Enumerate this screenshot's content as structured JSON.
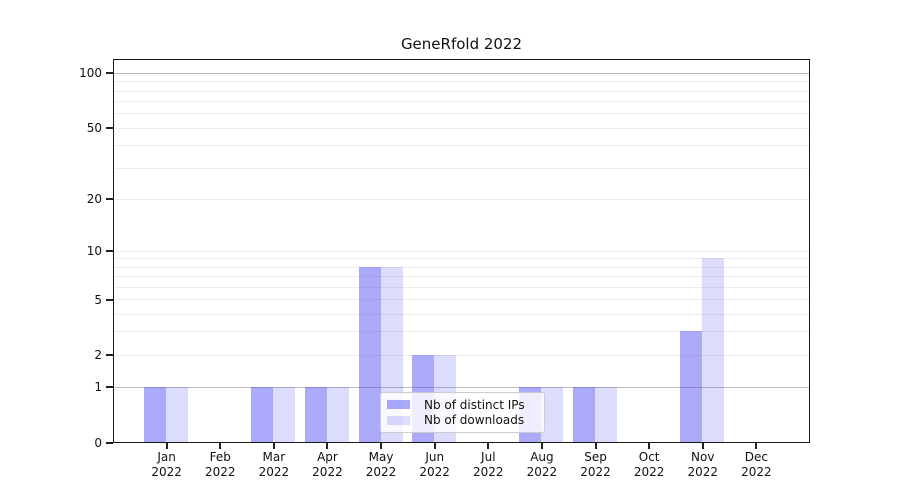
{
  "chart_data": {
    "type": "bar",
    "title": "GeneRfold 2022",
    "categories": [
      "Jan 2022",
      "Feb 2022",
      "Mar 2022",
      "Apr 2022",
      "May 2022",
      "Jun 2022",
      "Jul 2022",
      "Aug 2022",
      "Sep 2022",
      "Oct 2022",
      "Nov 2022",
      "Dec 2022"
    ],
    "series": [
      {
        "name": "Nb of distinct IPs",
        "color": "rgba(70,70,240,0.46)",
        "values": [
          1,
          0,
          1,
          1,
          8,
          2,
          0,
          1,
          1,
          0,
          3,
          0
        ]
      },
      {
        "name": "Nb of downloads",
        "color": "rgba(70,70,240,0.19)",
        "values": [
          1,
          0,
          1,
          1,
          8,
          2,
          0,
          1,
          1,
          0,
          9,
          0
        ]
      }
    ],
    "yscale": "log1p",
    "ylim": [
      0,
      120
    ],
    "yticks": [
      0,
      1,
      2,
      5,
      10,
      20,
      50,
      100
    ],
    "grid_values": [
      1,
      2,
      3,
      4,
      5,
      6,
      7,
      8,
      9,
      10,
      20,
      30,
      40,
      50,
      60,
      70,
      80,
      90,
      100
    ],
    "grid_major_values": [
      1,
      100
    ],
    "legend_position": "lower-center",
    "xlabel": "",
    "ylabel": ""
  }
}
